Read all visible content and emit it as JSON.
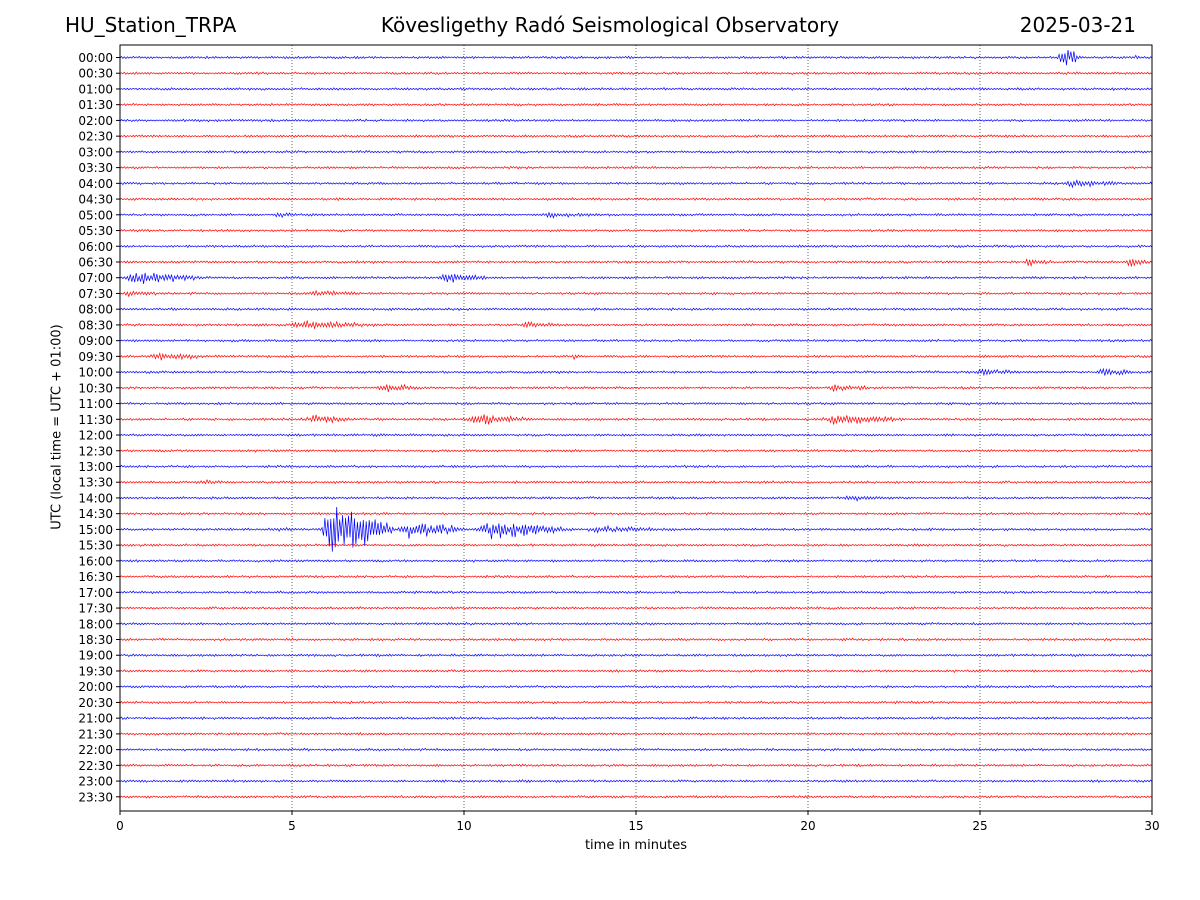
{
  "header": {
    "station": "HU_Station_TRPA",
    "observatory": "Kövesligethy Radó Seismological Observatory",
    "date": "2025-03-21"
  },
  "chart_data": {
    "type": "line",
    "title": "Kövesligethy Radó Seismological Observatory",
    "xlabel": "time in minutes",
    "ylabel": "UTC (local time = UTC + 01:00)",
    "xlim": [
      0,
      30
    ],
    "x_ticks": [
      0,
      5,
      10,
      15,
      20,
      25,
      30
    ],
    "y_ticks": [
      "00:00",
      "00:30",
      "01:00",
      "01:30",
      "02:00",
      "02:30",
      "03:00",
      "03:30",
      "04:00",
      "04:30",
      "05:00",
      "05:30",
      "06:00",
      "06:30",
      "07:00",
      "07:30",
      "08:00",
      "08:30",
      "09:00",
      "09:30",
      "10:00",
      "10:30",
      "11:00",
      "11:30",
      "12:00",
      "12:30",
      "13:00",
      "13:30",
      "14:00",
      "14:30",
      "15:00",
      "15:30",
      "16:00",
      "16:30",
      "17:00",
      "17:30",
      "18:00",
      "18:30",
      "19:00",
      "19:30",
      "20:00",
      "20:30",
      "21:00",
      "21:30",
      "22:00",
      "22:30",
      "23:00",
      "23:30"
    ],
    "colors": {
      "even_rows": "#0000ff",
      "odd_rows": "#ff0000",
      "grid": "#000000"
    },
    "grid": "vertical dotted at x ticks",
    "noise_amplitude": 1.0,
    "events": [
      {
        "row": "00:00",
        "start": 27.2,
        "end": 28.0,
        "amp": 9
      },
      {
        "row": "00:00",
        "start": 29.5,
        "end": 29.7,
        "amp": 2.5
      },
      {
        "row": "04:00",
        "start": 27.3,
        "end": 29.6,
        "amp": 3.5
      },
      {
        "row": "05:00",
        "start": 4.4,
        "end": 5.2,
        "amp": 3.5
      },
      {
        "row": "05:00",
        "start": 12.0,
        "end": 14.5,
        "amp": 2.5
      },
      {
        "row": "06:30",
        "start": 26.2,
        "end": 27.3,
        "amp": 4
      },
      {
        "row": "06:30",
        "start": 29.2,
        "end": 30.0,
        "amp": 4.5
      },
      {
        "row": "07:00",
        "start": 0.0,
        "end": 2.6,
        "amp": 6
      },
      {
        "row": "07:00",
        "start": 9.2,
        "end": 11.0,
        "amp": 5
      },
      {
        "row": "07:30",
        "start": 0.0,
        "end": 1.4,
        "amp": 3
      },
      {
        "row": "07:30",
        "start": 5.3,
        "end": 7.2,
        "amp": 3.5
      },
      {
        "row": "08:30",
        "start": 4.8,
        "end": 8.0,
        "amp": 4
      },
      {
        "row": "08:30",
        "start": 11.6,
        "end": 13.2,
        "amp": 3
      },
      {
        "row": "09:30",
        "start": 0.7,
        "end": 2.8,
        "amp": 4
      },
      {
        "row": "09:30",
        "start": 13.1,
        "end": 13.6,
        "amp": 3
      },
      {
        "row": "10:00",
        "start": 24.8,
        "end": 26.2,
        "amp": 4
      },
      {
        "row": "10:00",
        "start": 28.3,
        "end": 30.0,
        "amp": 3.5
      },
      {
        "row": "10:30",
        "start": 7.4,
        "end": 9.3,
        "amp": 3.5
      },
      {
        "row": "10:30",
        "start": 20.5,
        "end": 22.2,
        "amp": 4
      },
      {
        "row": "11:30",
        "start": 5.3,
        "end": 7.0,
        "amp": 4
      },
      {
        "row": "11:30",
        "start": 10.0,
        "end": 12.2,
        "amp": 5
      },
      {
        "row": "11:30",
        "start": 20.3,
        "end": 23.3,
        "amp": 5
      },
      {
        "row": "13:30",
        "start": 2.2,
        "end": 3.5,
        "amp": 2
      },
      {
        "row": "14:00",
        "start": 21.0,
        "end": 22.5,
        "amp": 3
      },
      {
        "row": "15:00",
        "start": 4.4,
        "end": 5.8,
        "amp": 2
      },
      {
        "row": "15:00",
        "start": 5.8,
        "end": 8.0,
        "amp": 26
      },
      {
        "row": "15:00",
        "start": 8.0,
        "end": 10.3,
        "amp": 8
      },
      {
        "row": "15:00",
        "start": 10.3,
        "end": 13.3,
        "amp": 9
      },
      {
        "row": "15:00",
        "start": 13.3,
        "end": 16.8,
        "amp": 3
      }
    ]
  }
}
